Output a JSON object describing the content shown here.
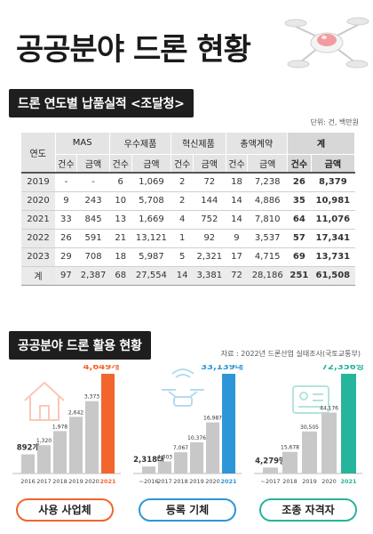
{
  "title": "공공분야 드론 현황",
  "section1_title": "드론 연도별 납품실적 <조달청>",
  "unit": "단위: 건, 백만원",
  "table": {
    "year_label": "연도",
    "groups": [
      "MAS",
      "우수제품",
      "혁신제품",
      "총액계약",
      "계"
    ],
    "sub": [
      "건수",
      "금액"
    ],
    "rows": [
      [
        "2019",
        "-",
        "-",
        "6",
        "1,069",
        "2",
        "72",
        "18",
        "7,238",
        "26",
        "8,379"
      ],
      [
        "2020",
        "9",
        "243",
        "10",
        "5,708",
        "2",
        "144",
        "14",
        "4,886",
        "35",
        "10,981"
      ],
      [
        "2021",
        "33",
        "845",
        "13",
        "1,669",
        "4",
        "752",
        "14",
        "7,810",
        "64",
        "11,076"
      ],
      [
        "2022",
        "26",
        "591",
        "21",
        "13,121",
        "1",
        "92",
        "9",
        "3,537",
        "57",
        "17,341"
      ],
      [
        "2023",
        "29",
        "708",
        "18",
        "5,987",
        "5",
        "2,321",
        "17",
        "4,715",
        "69",
        "13,731"
      ]
    ],
    "total": [
      "계",
      "97",
      "2,387",
      "68",
      "27,554",
      "14",
      "3,381",
      "72",
      "28,186",
      "251",
      "61,508"
    ]
  },
  "section2_title": "공공분야 드론 활용 현황",
  "source": "자료 : 2022년 드론산업 실태조사(국토교통부)",
  "colors": {
    "orange": "#f2652d",
    "blue": "#2d96d8",
    "green": "#27b49c",
    "gray": "#c8c8c8"
  },
  "chart_data": [
    {
      "type": "bar",
      "categories": [
        "2016",
        "2017",
        "2018",
        "2019",
        "2020",
        "2021"
      ],
      "values": [
        892,
        1320,
        1978,
        2642,
        3373,
        4649
      ],
      "labels": [
        "892개",
        "1,320",
        "1,978",
        "2,642",
        "3,373",
        "4,649개"
      ],
      "caption": "사용 사업체",
      "icon": "house-icon"
    },
    {
      "type": "bar",
      "categories": [
        "~2016",
        "2017",
        "2018",
        "2019",
        "2020",
        "2021"
      ],
      "values": [
        2318,
        4003,
        7067,
        10376,
        16987,
        33139
      ],
      "labels": [
        "2,318대",
        "4,003",
        "7,067",
        "10,376",
        "16,987",
        "33,139대"
      ],
      "caption": "등록 기체",
      "icon": "drone-icon"
    },
    {
      "type": "bar",
      "categories": [
        "~2017",
        "2018",
        "2019",
        "2020",
        "2021"
      ],
      "values": [
        4279,
        15678,
        30505,
        44176,
        72356
      ],
      "labels": [
        "4,279명",
        "15,678",
        "30,505",
        "44,176",
        "72,356명"
      ],
      "caption": "조종 자격자",
      "icon": "id-card-icon"
    }
  ]
}
